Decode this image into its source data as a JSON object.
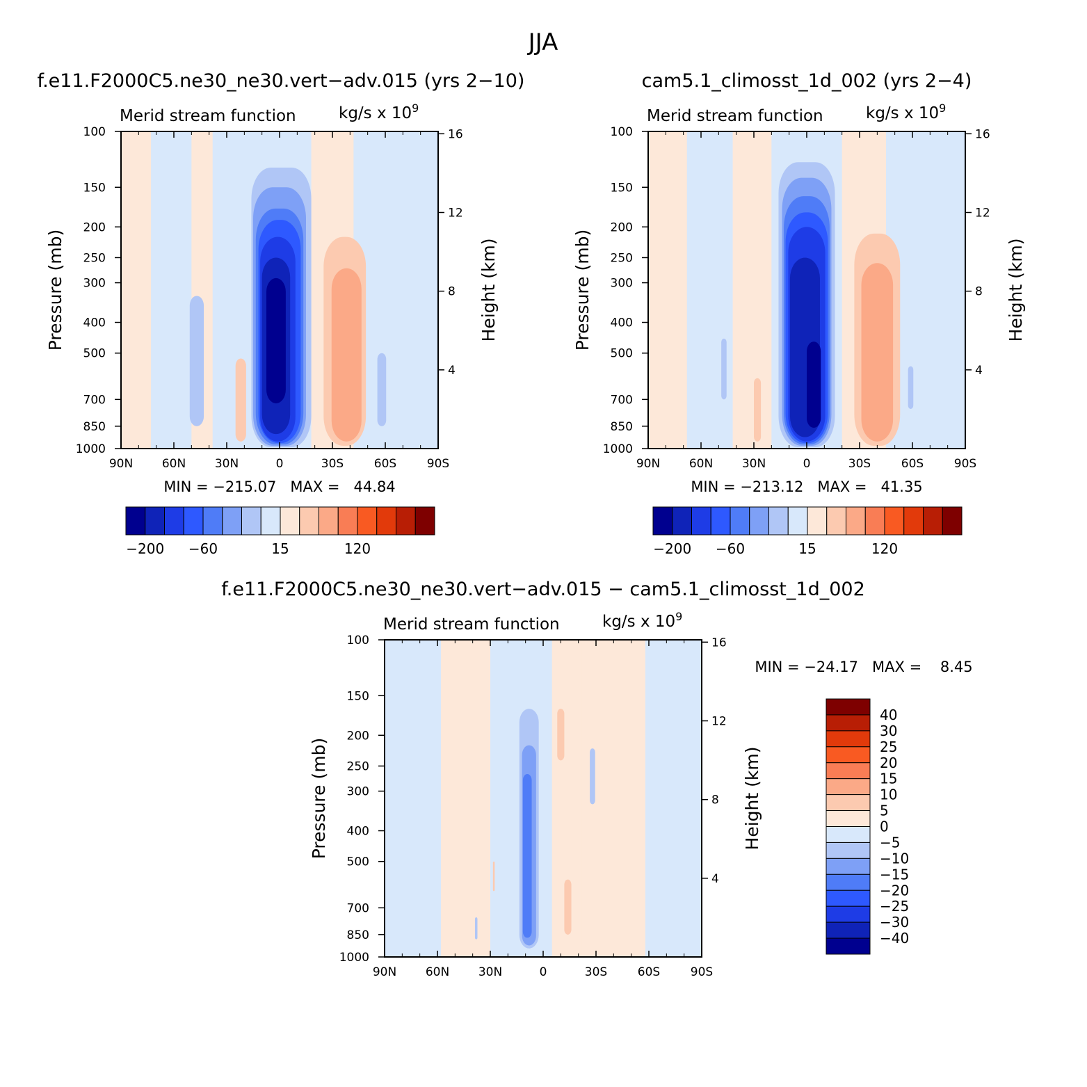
{
  "page_title": "JJA",
  "colors": {
    "blue_ramp": [
      "#00008f",
      "#0f23b8",
      "#1e3ce6",
      "#2e59ff",
      "#4f7cf7",
      "#7ea0f6",
      "#b0c6f6",
      "#d8e8fb"
    ],
    "red_ramp": [
      "#fde8d9",
      "#fccab0",
      "#fba987",
      "#f97d55",
      "#f95a22",
      "#e23a0b",
      "#b81e05",
      "#7e0000"
    ]
  },
  "chart_data": [
    {
      "type": "heatmap",
      "id": "p1",
      "title": "f.e11.F2000C5.ne30_ne30.vert−adv.015 (yrs 2−10)",
      "left_label": "Merid stream function",
      "right_label": "kg/s x 10",
      "right_label_sup": "9",
      "ylabel": "Pressure (mb)",
      "ylabel_right": "Height (km)",
      "xlim": [
        90,
        -90
      ],
      "ylim": [
        1000,
        100
      ],
      "y_scale": "log",
      "x_ticks": [
        {
          "v": 90,
          "label": "90N"
        },
        {
          "v": 60,
          "label": "60N"
        },
        {
          "v": 30,
          "label": "30N"
        },
        {
          "v": 0,
          "label": "0"
        },
        {
          "v": -30,
          "label": "30S"
        },
        {
          "v": -60,
          "label": "60S"
        },
        {
          "v": -90,
          "label": "90S"
        }
      ],
      "y_ticks": [
        100,
        150,
        200,
        250,
        300,
        400,
        500,
        700,
        850,
        1000
      ],
      "y_right_ticks": [
        4,
        8,
        12,
        16
      ],
      "stats_text": "MIN = −215.07   MAX =   44.84",
      "colorbar": {
        "orientation": "horizontal",
        "labels": [
          "−200",
          "−60",
          "15",
          "120"
        ],
        "levels": [
          -200,
          -160,
          -120,
          -80,
          -60,
          -40,
          -15,
          0,
          15,
          30,
          45,
          60,
          90,
          120,
          160
        ]
      },
      "features": [
        {
          "lat": 47,
          "ptop": 330,
          "pbot": 850,
          "halfw": 4,
          "level": 6
        },
        {
          "lat": 22,
          "ptop": 520,
          "pbot": 950,
          "halfw": 3,
          "level": 9
        },
        {
          "lat": -58,
          "ptop": 500,
          "pbot": 850,
          "halfw": 2.5,
          "level": 6
        },
        {
          "lat": -37,
          "ptop": 215,
          "pbot": 980,
          "halfw": 12,
          "level": 9
        },
        {
          "lat": -38,
          "ptop": 270,
          "pbot": 950,
          "halfw": 8.5,
          "level": 10
        },
        {
          "lat": -1,
          "ptop": 130,
          "pbot": 990,
          "halfw": 17,
          "level": 6
        },
        {
          "lat": 0,
          "ptop": 150,
          "pbot": 980,
          "halfw": 15,
          "level": 5
        },
        {
          "lat": 0,
          "ptop": 175,
          "pbot": 970,
          "halfw": 13.5,
          "level": 4
        },
        {
          "lat": 0,
          "ptop": 190,
          "pbot": 960,
          "halfw": 12,
          "level": 3
        },
        {
          "lat": 1,
          "ptop": 215,
          "pbot": 950,
          "halfw": 10,
          "level": 2
        },
        {
          "lat": 2,
          "ptop": 250,
          "pbot": 900,
          "halfw": 8,
          "level": 1
        },
        {
          "lat": 2,
          "ptop": 290,
          "pbot": 720,
          "halfw": 5.5,
          "level": 0
        }
      ]
    },
    {
      "type": "heatmap",
      "id": "p2",
      "title": "cam5.1_climosst_1d_002 (yrs 2−4)",
      "left_label": "Merid stream function",
      "right_label": "kg/s x 10",
      "right_label_sup": "9",
      "ylabel": "Pressure (mb)",
      "ylabel_right": "Height (km)",
      "xlim": [
        90,
        -90
      ],
      "ylim": [
        1000,
        100
      ],
      "y_scale": "log",
      "x_ticks": [
        {
          "v": 90,
          "label": "90N"
        },
        {
          "v": 60,
          "label": "60N"
        },
        {
          "v": 30,
          "label": "30N"
        },
        {
          "v": 0,
          "label": "0"
        },
        {
          "v": -30,
          "label": "30S"
        },
        {
          "v": -60,
          "label": "60S"
        },
        {
          "v": -90,
          "label": "90S"
        }
      ],
      "y_ticks": [
        100,
        150,
        200,
        250,
        300,
        400,
        500,
        700,
        850,
        1000
      ],
      "y_right_ticks": [
        4,
        8,
        12,
        16
      ],
      "stats_text": "MIN = −213.12   MAX =   41.35",
      "colorbar": {
        "orientation": "horizontal",
        "labels": [
          "−200",
          "−60",
          "15",
          "120"
        ],
        "levels": [
          -200,
          -160,
          -120,
          -80,
          -60,
          -40,
          -15,
          0,
          15,
          30,
          45,
          60,
          90,
          120,
          160
        ]
      },
      "features": [
        {
          "lat": 47,
          "ptop": 450,
          "pbot": 700,
          "halfw": 1.5,
          "level": 6
        },
        {
          "lat": 28,
          "ptop": 600,
          "pbot": 950,
          "halfw": 2,
          "level": 9
        },
        {
          "lat": -59,
          "ptop": 550,
          "pbot": 750,
          "halfw": 1.5,
          "level": 6
        },
        {
          "lat": -40,
          "ptop": 210,
          "pbot": 980,
          "halfw": 13,
          "level": 9
        },
        {
          "lat": -40,
          "ptop": 260,
          "pbot": 950,
          "halfw": 9,
          "level": 10
        },
        {
          "lat": 0,
          "ptop": 125,
          "pbot": 990,
          "halfw": 16,
          "level": 6
        },
        {
          "lat": 0,
          "ptop": 140,
          "pbot": 980,
          "halfw": 14,
          "level": 5
        },
        {
          "lat": 0,
          "ptop": 160,
          "pbot": 970,
          "halfw": 13,
          "level": 4
        },
        {
          "lat": 0,
          "ptop": 180,
          "pbot": 960,
          "halfw": 12,
          "level": 3
        },
        {
          "lat": 0,
          "ptop": 200,
          "pbot": 950,
          "halfw": 10.5,
          "level": 2
        },
        {
          "lat": 1,
          "ptop": 250,
          "pbot": 920,
          "halfw": 8.5,
          "level": 1
        },
        {
          "lat": -4,
          "ptop": 460,
          "pbot": 860,
          "halfw": 4,
          "level": 0
        }
      ]
    },
    {
      "type": "heatmap",
      "id": "p3",
      "title": "f.e11.F2000C5.ne30_ne30.vert−adv.015 − cam5.1_climosst_1d_002",
      "left_label": "Merid stream function",
      "right_label": "kg/s x 10",
      "right_label_sup": "9",
      "ylabel": "Pressure (mb)",
      "ylabel_right": "Height (km)",
      "xlim": [
        90,
        -90
      ],
      "ylim": [
        1000,
        100
      ],
      "y_scale": "log",
      "x_ticks": [
        {
          "v": 90,
          "label": "90N"
        },
        {
          "v": 60,
          "label": "60N"
        },
        {
          "v": 30,
          "label": "30N"
        },
        {
          "v": 0,
          "label": "0"
        },
        {
          "v": -30,
          "label": "30S"
        },
        {
          "v": -60,
          "label": "60S"
        },
        {
          "v": -90,
          "label": "90S"
        }
      ],
      "y_ticks": [
        100,
        150,
        200,
        250,
        300,
        400,
        500,
        700,
        850,
        1000
      ],
      "y_right_ticks": [
        4,
        8,
        12,
        16
      ],
      "stats_text": "MIN = −24.17   MAX =    8.45",
      "colorbar": {
        "orientation": "vertical",
        "labels": [
          "40",
          "30",
          "25",
          "20",
          "15",
          "10",
          "5",
          "0",
          "−5",
          "−10",
          "−15",
          "−20",
          "−25",
          "−30",
          "−40"
        ],
        "levels": [
          40,
          30,
          25,
          20,
          15,
          10,
          5,
          0,
          -5,
          -10,
          -15,
          -20,
          -25,
          -30,
          -40
        ]
      },
      "features": [
        {
          "lat": 8,
          "ptop": 165,
          "pbot": 940,
          "halfw": 5.5,
          "level": 6
        },
        {
          "lat": 8,
          "ptop": 215,
          "pbot": 920,
          "halfw": 4,
          "level": 5
        },
        {
          "lat": 9,
          "ptop": 265,
          "pbot": 870,
          "halfw": 2.5,
          "level": 4
        },
        {
          "lat": -28,
          "ptop": 220,
          "pbot": 330,
          "halfw": 1.5,
          "level": 6
        },
        {
          "lat": 38,
          "ptop": 750,
          "pbot": 880,
          "halfw": 0.7,
          "level": 6
        },
        {
          "lat": -10,
          "ptop": 165,
          "pbot": 240,
          "halfw": 2,
          "level": 9
        },
        {
          "lat": -14,
          "ptop": 570,
          "pbot": 850,
          "halfw": 2,
          "level": 9
        },
        {
          "lat": 28,
          "ptop": 500,
          "pbot": 620,
          "halfw": 0.5,
          "level": 9
        }
      ]
    }
  ]
}
